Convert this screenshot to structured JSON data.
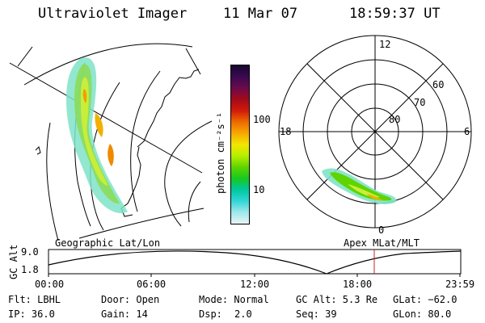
{
  "header": {
    "title": "Ultraviolet Imager",
    "date": "11 Mar 07",
    "time": "18:59:37 UT"
  },
  "map_panel": {
    "caption": "Geographic Lat/Lon"
  },
  "polar_panel": {
    "caption": "Apex MLat/MLT",
    "mlt_labels": {
      "top": "12",
      "left": "18",
      "right": "6",
      "bottom": "0"
    },
    "lat_labels": [
      "60",
      "70",
      "80"
    ]
  },
  "colorbar": {
    "unit_label": "photon cm⁻²s⁻¹",
    "ticks": [
      "100",
      "10"
    ],
    "colors": [
      "#1a0533",
      "#3a0a52",
      "#6b0a4a",
      "#a30a1a",
      "#d21a0a",
      "#ee6a00",
      "#f7a800",
      "#f2e600",
      "#b8ee00",
      "#5fd400",
      "#18c820",
      "#00c8a0",
      "#33d6d6",
      "#9fe8ea",
      "#e8f4f6"
    ]
  },
  "altitude_chart": {
    "ylabel": "GC Alt",
    "yticks": [
      "9.0",
      "1.8"
    ],
    "xticks": [
      "00:00",
      "06:00",
      "12:00",
      "18:00",
      "23:59"
    ],
    "colors": {
      "marker": "#cc2222"
    }
  },
  "info": {
    "filter": "Flt: LBHL",
    "ip": "IP: 36.0",
    "door": "Door: Open",
    "gain": "Gain: 14",
    "mode": "Mode: Normal",
    "dsp_label": "Dsp:",
    "dsp_value": "2.0",
    "gc_alt": "GC Alt: 5.3 Re",
    "seq": "Seq: 39",
    "glat": "GLat: −62.0",
    "glon": "GLon: 80.0"
  }
}
